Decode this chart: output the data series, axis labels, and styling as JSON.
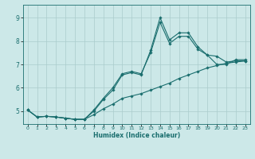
{
  "xlabel": "Humidex (Indice chaleur)",
  "bg_color": "#cce8e8",
  "grid_color": "#aacccc",
  "line_color": "#1a6e6e",
  "xlim": [
    -0.5,
    23.5
  ],
  "ylim": [
    4.45,
    9.55
  ],
  "xticks": [
    0,
    1,
    2,
    3,
    4,
    5,
    6,
    7,
    8,
    9,
    10,
    11,
    12,
    13,
    14,
    15,
    16,
    17,
    18,
    19,
    20,
    21,
    22,
    23
  ],
  "yticks": [
    5,
    6,
    7,
    8,
    9
  ],
  "main_x": [
    0,
    1,
    2,
    3,
    4,
    5,
    6,
    7,
    8,
    9,
    10,
    11,
    12,
    13,
    14,
    15,
    16,
    17,
    18,
    19,
    20,
    21,
    22,
    23
  ],
  "main_y": [
    5.05,
    4.75,
    4.78,
    4.75,
    4.7,
    4.65,
    4.65,
    5.0,
    5.5,
    5.9,
    6.55,
    6.65,
    6.55,
    7.6,
    9.0,
    8.05,
    8.35,
    8.35,
    7.75,
    7.4,
    7.0,
    7.0,
    7.2,
    7.2
  ],
  "low_x": [
    0,
    1,
    2,
    3,
    4,
    5,
    6,
    7,
    8,
    9,
    10,
    11,
    12,
    13,
    14,
    15,
    16,
    17,
    18,
    19,
    20,
    21,
    22,
    23
  ],
  "low_y": [
    5.05,
    4.75,
    4.78,
    4.75,
    4.7,
    4.65,
    4.65,
    4.85,
    5.1,
    5.3,
    5.55,
    5.65,
    5.75,
    5.9,
    6.05,
    6.2,
    6.4,
    6.55,
    6.7,
    6.85,
    6.95,
    7.05,
    7.1,
    7.15
  ],
  "high_x": [
    0,
    1,
    2,
    3,
    4,
    5,
    6,
    7,
    8,
    9,
    10,
    11,
    12,
    13,
    14,
    15,
    16,
    17,
    18,
    19,
    20,
    21,
    22,
    23
  ],
  "high_y": [
    5.05,
    4.75,
    4.78,
    4.75,
    4.7,
    4.65,
    4.65,
    5.05,
    5.55,
    6.0,
    6.6,
    6.7,
    6.6,
    7.5,
    8.8,
    7.9,
    8.2,
    8.2,
    7.65,
    7.4,
    7.35,
    7.1,
    7.15,
    7.15
  ]
}
